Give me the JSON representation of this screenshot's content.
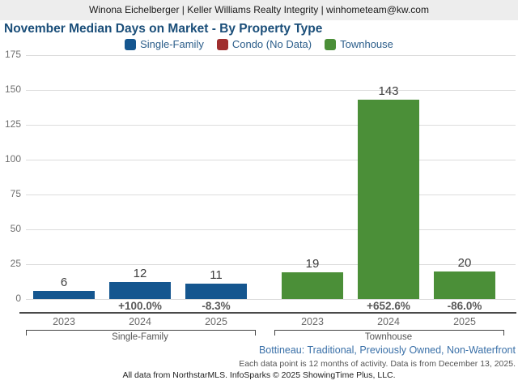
{
  "header": {
    "contact_line": "Winona Eichelberger | Keller Williams Realty Integrity | winhometeam@kw.com"
  },
  "chart": {
    "title": "November Median Days on Market - By Property Type",
    "legend": [
      {
        "label": "Single-Family",
        "color": "#15568f"
      },
      {
        "label": "Condo (No Data)",
        "color": "#a02f2f"
      },
      {
        "label": "Townhouse",
        "color": "#4b8f38"
      }
    ]
  },
  "chart_data": {
    "type": "bar",
    "title": "November Median Days on Market - By Property Type",
    "xlabel": "",
    "ylabel": "",
    "ylim": [
      0,
      175
    ],
    "yticks": [
      0,
      25,
      50,
      75,
      100,
      125,
      150,
      175
    ],
    "grid": true,
    "legend_position": "top",
    "legend_entries": [
      "Single-Family",
      "Condo (No Data)",
      "Townhouse"
    ],
    "no_data_series": [
      "Condo"
    ],
    "groups": [
      {
        "name": "Single-Family",
        "color": "#15568f",
        "categories": [
          "2023",
          "2024",
          "2025"
        ],
        "values": [
          6,
          12,
          11
        ],
        "pct_change": [
          null,
          "+100.0%",
          "-8.3%"
        ]
      },
      {
        "name": "Townhouse",
        "color": "#4b8f38",
        "categories": [
          "2023",
          "2024",
          "2025"
        ],
        "values": [
          19,
          143,
          20
        ],
        "pct_change": [
          null,
          "+652.6%",
          "-86.0%"
        ]
      }
    ]
  },
  "footer": {
    "filter_line": "Bottineau: Traditional, Previously Owned, Non-Waterfront",
    "data_note": "Each data point is 12 months of activity. Data is from December 13, 2025.",
    "attribution": "All data from NorthstarMLS. InfoSparks © 2025 ShowingTime Plus, LLC."
  },
  "colors": {
    "title_text": "#1a4e79",
    "legend_text": "#2b5d8a",
    "single_family_bar": "#15568f",
    "condo_swatch": "#a02f2f",
    "townhouse_bar": "#4b8f38",
    "filter_line_text": "#3a70a8",
    "header_band_bg": "#ededed",
    "gridline": "#dcdcdc"
  }
}
